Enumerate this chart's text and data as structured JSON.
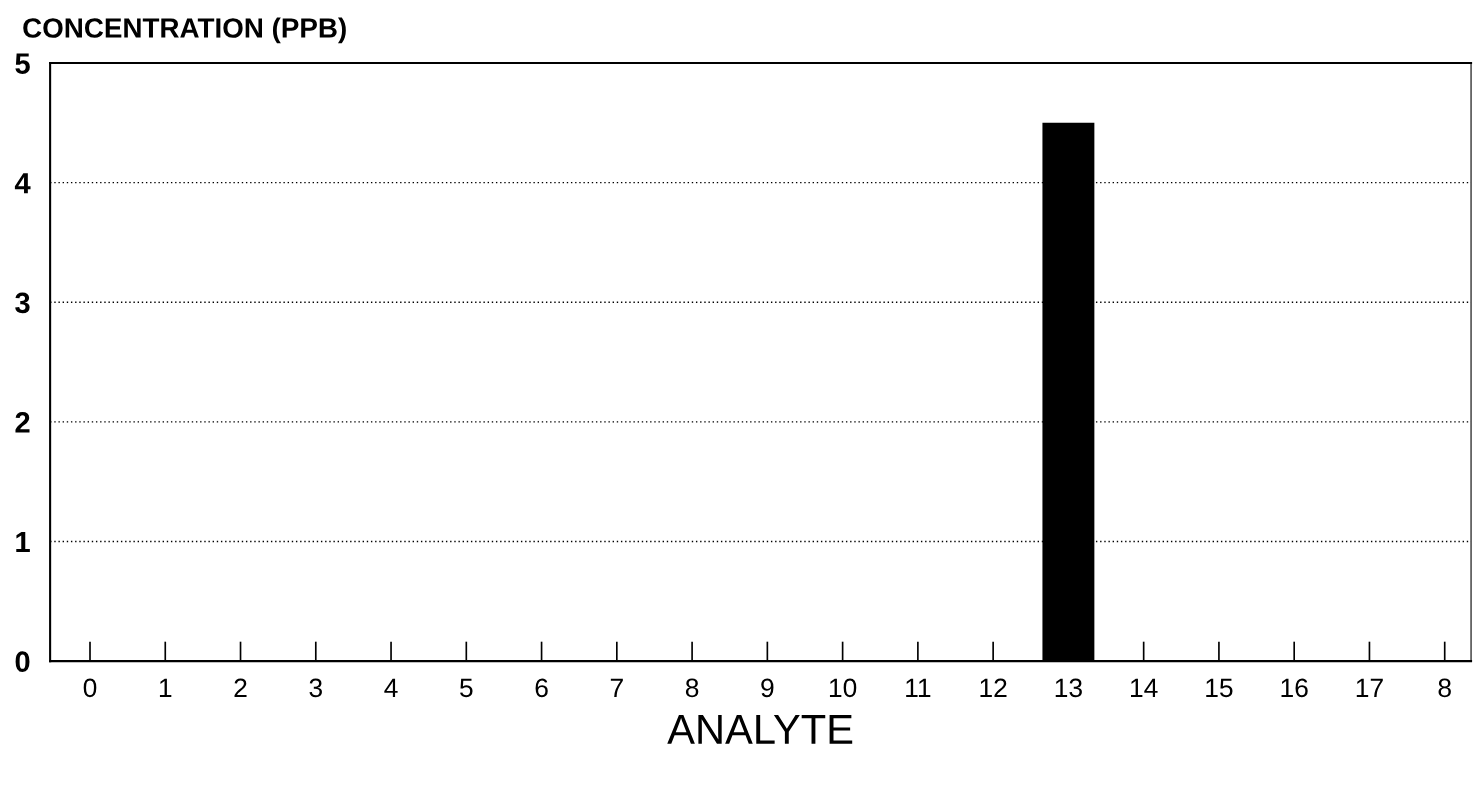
{
  "chart_data": {
    "type": "bar",
    "ylabel": "CONCENTRATION (PPB)",
    "xlabel": "ANALYTE",
    "categories": [
      "0",
      "1",
      "2",
      "3",
      "4",
      "5",
      "6",
      "7",
      "8",
      "9",
      "10",
      "11",
      "12",
      "13",
      "14",
      "15",
      "16",
      "17",
      "8"
    ],
    "values": [
      0,
      0,
      0,
      0,
      0,
      0,
      0,
      0,
      0,
      0,
      0,
      0,
      0,
      4.5,
      0,
      0,
      0,
      0,
      0
    ],
    "color": "#000000",
    "ylim": [
      0,
      5
    ],
    "yticks": [
      0,
      1,
      2,
      3,
      4,
      5
    ],
    "grid": "y"
  }
}
